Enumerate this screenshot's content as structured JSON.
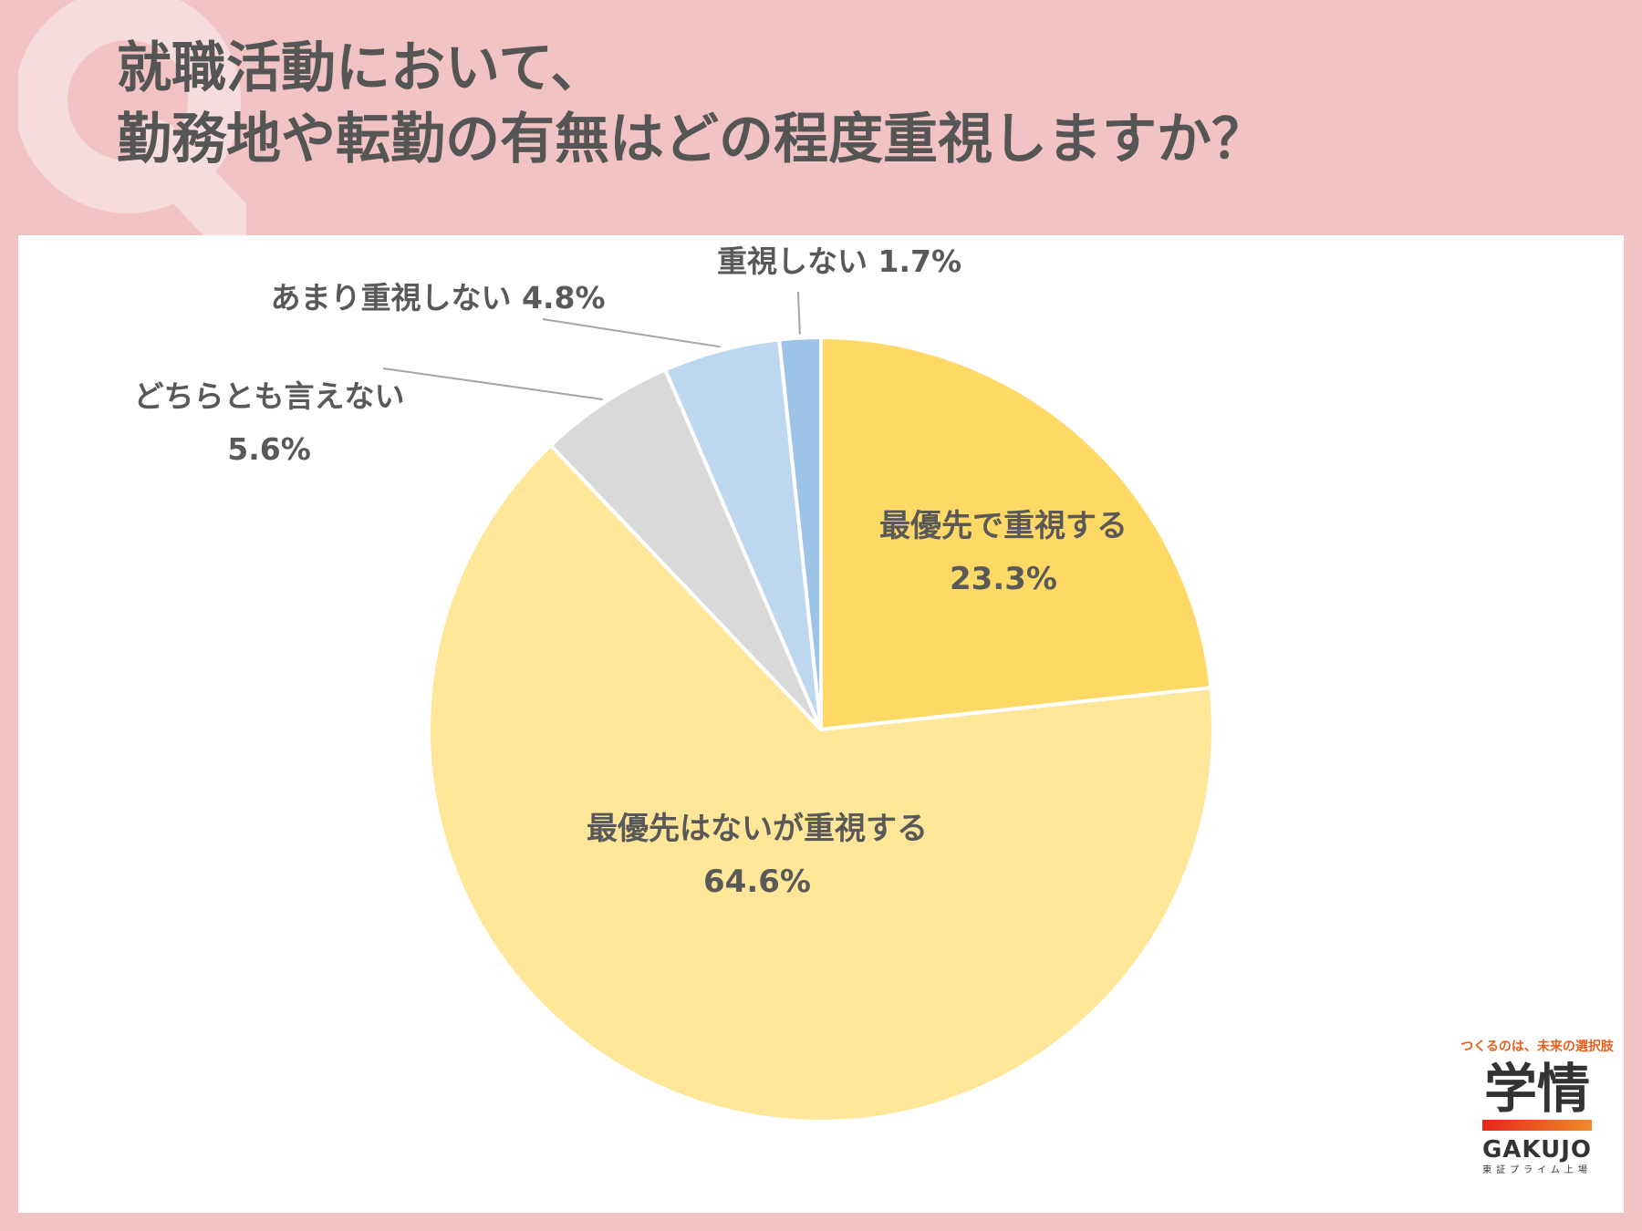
{
  "title": {
    "line1": "就職活動において、",
    "line2": "勤務地や転勤の有無はどの程度重視しますか？"
  },
  "chart_data": {
    "type": "pie",
    "unit": "%",
    "slices": [
      {
        "label": "最優先で重視する",
        "value": 23.3,
        "value_text": "23.3%",
        "color": "#ffd966"
      },
      {
        "label": "最優先はないが重視する",
        "value": 64.6,
        "value_text": "64.6%",
        "color": "#ffe699"
      },
      {
        "label": "どちらとも言えない",
        "value": 5.6,
        "value_text": "5.6%",
        "color": "#d9d9d9"
      },
      {
        "label": "あまり重視しない",
        "value": 4.8,
        "value_text": "4.8%",
        "color": "#bdd7ee"
      },
      {
        "label": "重視しない",
        "value": 1.7,
        "value_text": "1.7%",
        "color": "#9dc3e6"
      }
    ]
  },
  "logo": {
    "tagline": "つくるのは、未来の選択肢",
    "kanji": "学情",
    "name": "GAKUJO",
    "sub": "東証プライム上場"
  }
}
